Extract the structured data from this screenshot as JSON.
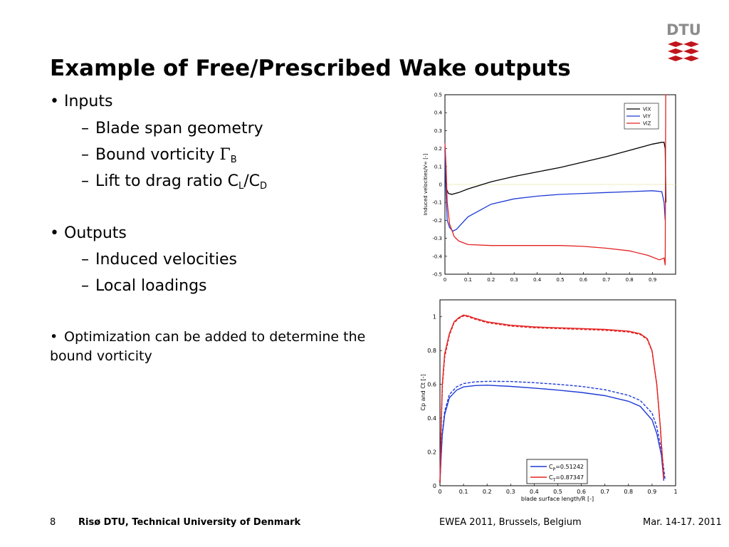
{
  "slide": {
    "title": "Example of Free/Prescribed Wake outputs",
    "logo_text": "DTU",
    "logo_color": "#c0161c"
  },
  "bullets": {
    "inputs": {
      "label": "Inputs",
      "items": [
        {
          "text": "Blade span geometry"
        },
        {
          "text": "Bound vorticity ",
          "symbol": "Γ",
          "sub": "B"
        },
        {
          "pre": "Lift to drag ratio C",
          "sub1": "L",
          "mid": "/C",
          "sub2": "D"
        }
      ]
    },
    "outputs": {
      "label": "Outputs",
      "items": [
        {
          "text": "Induced velocities"
        },
        {
          "text": "Local loadings"
        }
      ]
    },
    "optimization": "Optimization can be added to determine the bound vorticity"
  },
  "footer": {
    "page": "8",
    "org": "Risø DTU, Technical University of Denmark",
    "event": "EWEA 2011, Brussels, Belgium",
    "date": "Mar. 14-17. 2011"
  },
  "chart_data": [
    {
      "type": "line",
      "ylabel": "Induced velocities/V∞ [-]",
      "xlabel": "",
      "xlim": [
        0,
        0.96
      ],
      "ylim": [
        -0.5,
        0.5
      ],
      "xticks": [
        "0",
        "0.1",
        "0.2",
        "0.3",
        "0.4",
        "0.5",
        "0.6",
        "0.7",
        "0.8",
        "0.9"
      ],
      "yticks": [
        "-0.5",
        "-0.4",
        "-0.3",
        "-0.2",
        "-0.1",
        "0",
        "0.1",
        "0.2",
        "0.3",
        "0.4",
        "0.5"
      ],
      "legend_position": "top-right",
      "series": [
        {
          "name": "ViX",
          "color": "#000000",
          "x": [
            0.0,
            0.005,
            0.015,
            0.03,
            0.06,
            0.1,
            0.2,
            0.3,
            0.4,
            0.5,
            0.6,
            0.7,
            0.8,
            0.9,
            0.94,
            0.95,
            0.955,
            0.958
          ],
          "y": [
            0.19,
            -0.02,
            -0.05,
            -0.055,
            -0.045,
            -0.025,
            0.015,
            0.045,
            0.07,
            0.095,
            0.125,
            0.155,
            0.19,
            0.225,
            0.235,
            0.235,
            0.2,
            -0.1
          ]
        },
        {
          "name": "ViY",
          "color": "#1f3bd6",
          "x": [
            0.0,
            0.005,
            0.01,
            0.02,
            0.035,
            0.05,
            0.1,
            0.2,
            0.3,
            0.4,
            0.5,
            0.6,
            0.7,
            0.8,
            0.9,
            0.94,
            0.95,
            0.955
          ],
          "y": [
            0.2,
            -0.05,
            -0.2,
            -0.24,
            -0.26,
            -0.25,
            -0.18,
            -0.11,
            -0.08,
            -0.065,
            -0.055,
            -0.05,
            -0.045,
            -0.04,
            -0.035,
            -0.04,
            -0.1,
            -0.2
          ]
        },
        {
          "name": "ViZ",
          "color": "#e32222",
          "x": [
            0.0,
            0.005,
            0.01,
            0.02,
            0.04,
            0.06,
            0.1,
            0.2,
            0.3,
            0.5,
            0.6,
            0.7,
            0.8,
            0.88,
            0.93,
            0.95,
            0.955,
            0.957,
            0.96
          ],
          "y": [
            0.23,
            0.1,
            -0.1,
            -0.22,
            -0.29,
            -0.315,
            -0.335,
            -0.34,
            -0.34,
            -0.34,
            -0.345,
            -0.355,
            -0.37,
            -0.395,
            -0.42,
            -0.41,
            -0.45,
            0.5,
            0.5
          ]
        }
      ]
    },
    {
      "type": "line",
      "ylabel": "Cp and Ct [-]",
      "xlabel": "blade surface length/R [-]",
      "xlim": [
        0,
        1
      ],
      "ylim": [
        0,
        1.1
      ],
      "xticks": [
        "0",
        "0.1",
        "0.2",
        "0.3",
        "0.4",
        "0.5",
        "0.6",
        "0.7",
        "0.8",
        "0.9",
        "1"
      ],
      "yticks": [
        "0",
        "0.2",
        "0.4",
        "0.6",
        "0.8",
        "1"
      ],
      "legend_position": "bottom-right",
      "legend": [
        {
          "label": "C",
          "sub": "P",
          "value": "=0.51242",
          "color": "#1f3bd6"
        },
        {
          "label": "C",
          "sub": "T",
          "value": "=0.87347",
          "color": "#e32222"
        }
      ],
      "series": [
        {
          "color": "#1f3bd6",
          "dash": false,
          "x": [
            0.0,
            0.005,
            0.01,
            0.02,
            0.04,
            0.07,
            0.1,
            0.15,
            0.2,
            0.3,
            0.4,
            0.5,
            0.6,
            0.7,
            0.8,
            0.85,
            0.9,
            0.92,
            0.94,
            0.95
          ],
          "y": [
            0.02,
            0.18,
            0.3,
            0.42,
            0.52,
            0.565,
            0.585,
            0.593,
            0.595,
            0.588,
            0.578,
            0.566,
            0.552,
            0.533,
            0.5,
            0.47,
            0.39,
            0.31,
            0.18,
            0.03
          ]
        },
        {
          "color": "#1f3bd6",
          "dash": true,
          "x": [
            0.0,
            0.005,
            0.01,
            0.02,
            0.04,
            0.07,
            0.1,
            0.15,
            0.2,
            0.3,
            0.4,
            0.5,
            0.6,
            0.7,
            0.8,
            0.85,
            0.9,
            0.92,
            0.94,
            0.955
          ],
          "y": [
            0.02,
            0.19,
            0.31,
            0.44,
            0.54,
            0.585,
            0.605,
            0.615,
            0.618,
            0.617,
            0.61,
            0.6,
            0.588,
            0.568,
            0.535,
            0.505,
            0.43,
            0.35,
            0.21,
            0.04
          ]
        },
        {
          "color": "#e32222",
          "dash": false,
          "x": [
            0.0,
            0.005,
            0.01,
            0.02,
            0.04,
            0.06,
            0.08,
            0.1,
            0.12,
            0.15,
            0.2,
            0.3,
            0.4,
            0.5,
            0.6,
            0.7,
            0.8,
            0.85,
            0.88,
            0.9,
            0.92,
            0.935,
            0.95
          ],
          "y": [
            0.02,
            0.35,
            0.6,
            0.78,
            0.9,
            0.97,
            0.995,
            1.01,
            1.005,
            0.99,
            0.97,
            0.95,
            0.94,
            0.935,
            0.93,
            0.925,
            0.915,
            0.9,
            0.87,
            0.8,
            0.6,
            0.35,
            0.04
          ]
        },
        {
          "color": "#e32222",
          "dash": true,
          "x": [
            0.0,
            0.005,
            0.01,
            0.02,
            0.04,
            0.06,
            0.08,
            0.1,
            0.12,
            0.15,
            0.2,
            0.3,
            0.4,
            0.5,
            0.6,
            0.7,
            0.8,
            0.85,
            0.88,
            0.9,
            0.92,
            0.935,
            0.95
          ],
          "y": [
            0.02,
            0.33,
            0.58,
            0.76,
            0.89,
            0.965,
            0.99,
            1.005,
            1.0,
            0.985,
            0.965,
            0.945,
            0.935,
            0.93,
            0.925,
            0.92,
            0.91,
            0.895,
            0.865,
            0.795,
            0.6,
            0.35,
            0.04
          ]
        }
      ]
    }
  ]
}
